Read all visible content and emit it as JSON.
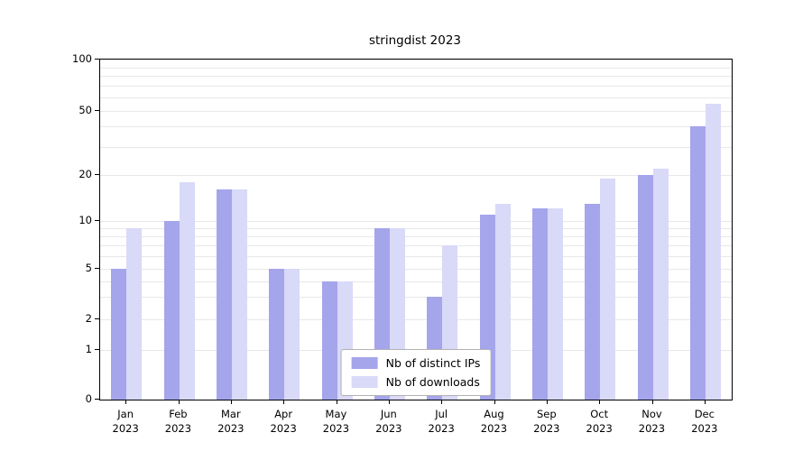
{
  "page": {
    "background": "#ffffff"
  },
  "chart_data": {
    "type": "bar",
    "title": "stringdist 2023",
    "categories": [
      "Jan",
      "Feb",
      "Mar",
      "Apr",
      "May",
      "Jun",
      "Jul",
      "Aug",
      "Sep",
      "Oct",
      "Nov",
      "Dec"
    ],
    "year_label": "2023",
    "series": [
      {
        "name": "Nb of distinct IPs",
        "color": "#a5a5ec",
        "values": [
          5,
          10,
          16,
          5,
          4,
          9,
          3,
          11,
          12,
          13,
          20,
          40
        ]
      },
      {
        "name": "Nb of downloads",
        "color": "#d9d9f8",
        "values": [
          9,
          18,
          16,
          5,
          4,
          9,
          7,
          13,
          12,
          19,
          22,
          55
        ]
      }
    ],
    "y_axis": {
      "scale": "symlog",
      "range": [
        0,
        100
      ],
      "ticks": [
        0,
        1,
        2,
        5,
        10,
        20,
        50,
        100
      ],
      "gridlines": [
        1,
        2,
        3,
        4,
        5,
        6,
        7,
        8,
        9,
        10,
        20,
        30,
        40,
        50,
        60,
        70,
        80,
        90,
        100
      ]
    },
    "legend": {
      "position": "bottom-center"
    },
    "grid": true,
    "colors": {
      "axis": "#000000",
      "gridline": "#e8e8e8",
      "legend_border": "#b3b3b3"
    }
  }
}
